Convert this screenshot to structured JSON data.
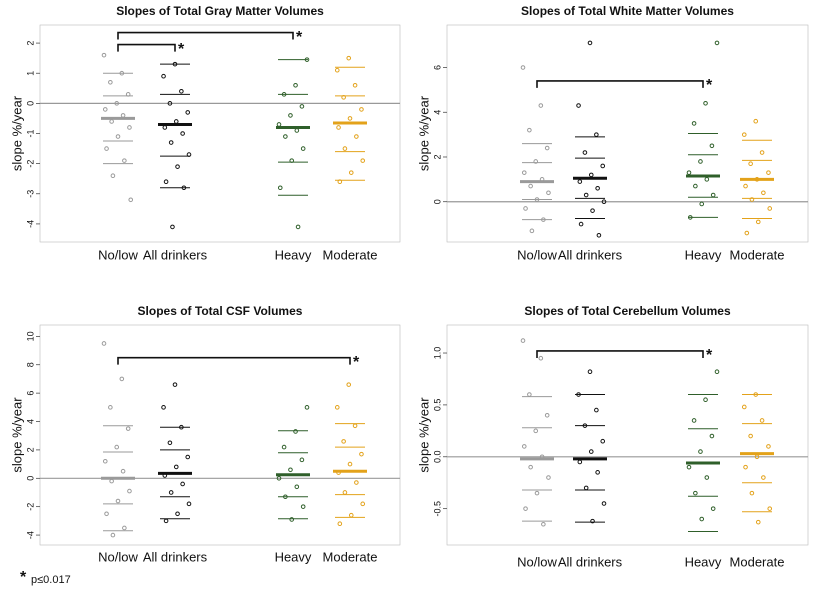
{
  "chart_data": [
    {
      "type": "strip",
      "title": "Slopes of Total Gray Matter Volumes",
      "ylabel": "slope %/year",
      "categories": [
        "No/low",
        "All drinkers",
        "Heavy",
        "Moderate"
      ],
      "colors": [
        "#9a9a9a",
        "#111111",
        "#2f5f2a",
        "#e3a21a"
      ],
      "points": [
        [
          1.6,
          1.0,
          0.7,
          0.3,
          0.0,
          -0.2,
          -0.4,
          -0.6,
          -0.8,
          -1.1,
          -1.5,
          -1.9,
          -2.4,
          -3.2
        ],
        [
          1.3,
          0.9,
          0.4,
          0.0,
          -0.3,
          -0.6,
          -0.8,
          -1.0,
          -1.3,
          -1.7,
          -2.1,
          -2.6,
          -2.8,
          -4.1
        ],
        [
          1.45,
          0.6,
          0.3,
          -0.1,
          -0.4,
          -0.7,
          -0.9,
          -1.1,
          -1.5,
          -1.9,
          -2.8,
          -4.1
        ],
        [
          1.5,
          1.1,
          0.6,
          0.2,
          -0.2,
          -0.5,
          -0.8,
          -1.1,
          -1.5,
          -1.9,
          -2.3,
          -2.6
        ]
      ],
      "means": [
        -0.5,
        -0.7,
        -0.8,
        -0.65
      ],
      "bands": [
        [
          1.0,
          0.25,
          -1.25,
          -2.0
        ],
        [
          1.3,
          0.3,
          -1.75,
          -2.8
        ],
        [
          1.45,
          0.3,
          -1.95,
          -3.05
        ],
        [
          1.2,
          0.25,
          -1.6,
          -2.55
        ]
      ],
      "refline": 0,
      "ylim": [
        -4.6,
        2.6
      ],
      "yticks": [
        -4,
        -3,
        -2,
        -1,
        0,
        1,
        2
      ],
      "brackets": [
        {
          "from": "No/low",
          "to": "All drinkers",
          "y": 1.95,
          "label": "*"
        },
        {
          "from": "No/low",
          "to": "Heavy",
          "y": 2.35,
          "label": "*"
        }
      ]
    },
    {
      "type": "strip",
      "title": "Slopes of Total White Matter Volumes",
      "ylabel": "slope %/year",
      "categories": [
        "No/low",
        "All drinkers",
        "Heavy",
        "Moderate"
      ],
      "colors": [
        "#9a9a9a",
        "#111111",
        "#2f5f2a",
        "#e3a21a"
      ],
      "points": [
        [
          6.0,
          4.3,
          3.2,
          2.4,
          1.8,
          1.3,
          1.0,
          0.7,
          0.4,
          0.1,
          -0.3,
          -0.8,
          -1.3
        ],
        [
          7.1,
          4.3,
          3.0,
          2.2,
          1.6,
          1.2,
          0.9,
          0.6,
          0.3,
          0.0,
          -0.4,
          -1.0,
          -1.5
        ],
        [
          7.1,
          4.4,
          3.5,
          2.5,
          1.8,
          1.3,
          1.0,
          0.7,
          0.3,
          -0.1,
          -0.7
        ],
        [
          3.6,
          3.0,
          2.2,
          1.7,
          1.3,
          1.0,
          0.7,
          0.4,
          0.1,
          -0.3,
          -0.9,
          -1.4
        ]
      ],
      "means": [
        0.9,
        1.05,
        1.15,
        1.0
      ],
      "bands": [
        [
          2.6,
          1.75,
          0.1,
          -0.8
        ],
        [
          2.9,
          1.95,
          0.15,
          -0.75
        ],
        [
          3.05,
          2.1,
          0.2,
          -0.7
        ],
        [
          2.75,
          1.85,
          0.15,
          -0.75
        ]
      ],
      "refline": 0,
      "ylim": [
        -1.8,
        7.9
      ],
      "yticks": [
        0,
        2,
        4,
        6
      ],
      "brackets": [
        {
          "from": "No/low",
          "to": "Heavy",
          "y": 5.4,
          "label": "*"
        }
      ]
    },
    {
      "type": "strip",
      "title": "Slopes of Total CSF Volumes",
      "ylabel": "slope %/year",
      "categories": [
        "No/low",
        "All drinkers",
        "Heavy",
        "Moderate"
      ],
      "colors": [
        "#9a9a9a",
        "#111111",
        "#2f5f2a",
        "#e3a21a"
      ],
      "points": [
        [
          9.5,
          7.0,
          5.0,
          3.5,
          2.2,
          1.2,
          0.5,
          -0.2,
          -0.9,
          -1.6,
          -2.5,
          -3.5,
          -4.0
        ],
        [
          6.6,
          5.0,
          3.6,
          2.5,
          1.5,
          0.8,
          0.2,
          -0.4,
          -1.0,
          -1.8,
          -2.5,
          -3.0
        ],
        [
          5.0,
          3.3,
          2.2,
          1.3,
          0.6,
          0.0,
          -0.6,
          -1.3,
          -2.0,
          -2.9
        ],
        [
          6.6,
          5.0,
          3.7,
          2.6,
          1.7,
          1.0,
          0.4,
          -0.3,
          -1.0,
          -1.8,
          -2.6,
          -3.2
        ]
      ],
      "means": [
        0.0,
        0.35,
        0.25,
        0.5
      ],
      "bands": [
        [
          3.7,
          1.85,
          -1.8,
          -3.7
        ],
        [
          3.6,
          2.0,
          -1.3,
          -2.85
        ],
        [
          3.35,
          1.8,
          -1.3,
          -2.85
        ],
        [
          3.85,
          2.2,
          -1.15,
          -2.75
        ]
      ],
      "refline": 0,
      "ylim": [
        -4.7,
        10.8
      ],
      "yticks": [
        -4,
        -2,
        0,
        2,
        4,
        6,
        8,
        10
      ],
      "brackets": [
        {
          "from": "No/low",
          "to": "Moderate",
          "y": 8.5,
          "label": "*"
        }
      ]
    },
    {
      "type": "strip",
      "title": "Slopes of Total Cerebellum Volumes",
      "ylabel": "slope %/year",
      "categories": [
        "No/low",
        "All drinkers",
        "Heavy",
        "Moderate"
      ],
      "colors": [
        "#9a9a9a",
        "#111111",
        "#2f5f2a",
        "#e3a21a"
      ],
      "points": [
        [
          1.12,
          0.95,
          0.6,
          0.4,
          0.25,
          0.1,
          0.0,
          -0.1,
          -0.2,
          -0.35,
          -0.5,
          -0.65
        ],
        [
          0.82,
          0.6,
          0.45,
          0.3,
          0.15,
          0.05,
          -0.05,
          -0.15,
          -0.3,
          -0.45,
          -0.62
        ],
        [
          0.82,
          0.55,
          0.35,
          0.2,
          0.05,
          -0.1,
          -0.2,
          -0.35,
          -0.5,
          -0.6
        ],
        [
          0.6,
          0.48,
          0.35,
          0.2,
          0.1,
          0.0,
          -0.1,
          -0.2,
          -0.35,
          -0.5,
          -0.63
        ]
      ],
      "means": [
        -0.02,
        -0.02,
        -0.06,
        0.03
      ],
      "bands": [
        [
          0.58,
          0.28,
          -0.32,
          -0.62
        ],
        [
          0.6,
          0.3,
          -0.32,
          -0.63
        ],
        [
          0.6,
          0.27,
          -0.38,
          -0.72
        ],
        [
          0.6,
          0.32,
          -0.25,
          -0.53
        ]
      ],
      "refline": 0,
      "ylim": [
        -0.85,
        1.27
      ],
      "yticks": [
        -0.5,
        {
          "value": 0,
          "label": "0.0"
        },
        0.5,
        {
          "value": 1,
          "label": "1.0"
        }
      ],
      "brackets": [
        {
          "from": "No/low",
          "to": "Heavy",
          "y": 1.02,
          "label": "*"
        }
      ]
    }
  ],
  "footnote": {
    "symbol": "*",
    "text": "p≤0.017"
  }
}
